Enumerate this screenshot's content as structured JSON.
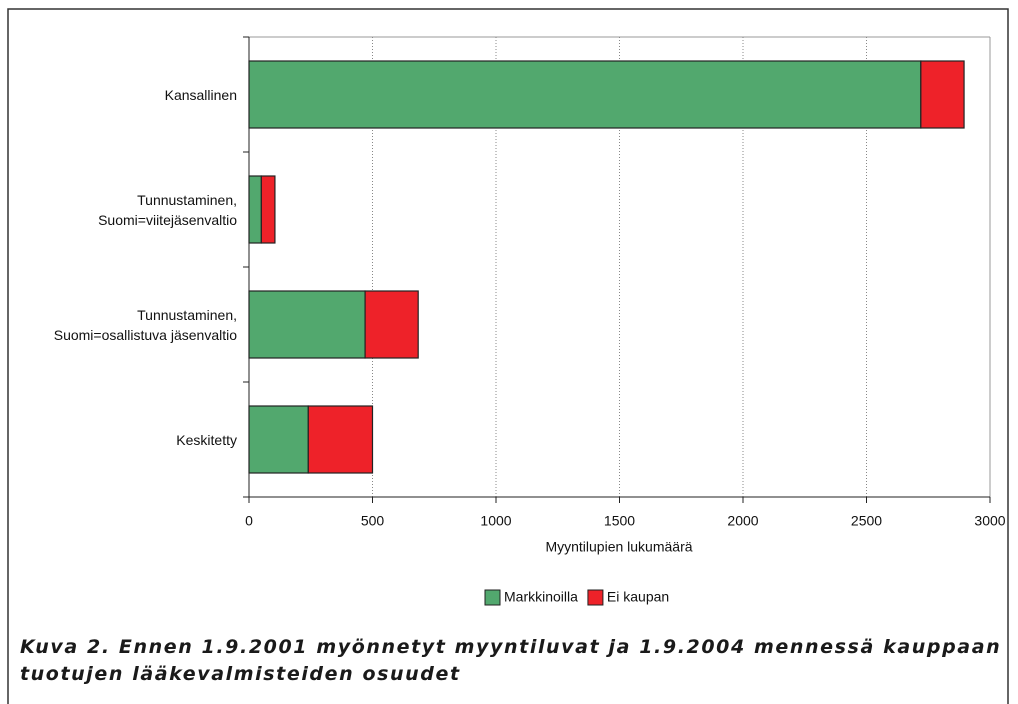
{
  "chart_data": {
    "type": "bar",
    "orientation": "horizontal",
    "stacked": true,
    "categories": [
      "Kansallinen",
      "Tunnustaminen,\nSuomi=viitejäsenvaltio",
      "Tunnustaminen,\nSuomi=osallistuva jäsenvaltio",
      "Keskitetty"
    ],
    "series": [
      {
        "name": "Markkinoilla",
        "color": "#52a86e",
        "values": [
          2720,
          50,
          470,
          240
        ]
      },
      {
        "name": "Ei kaupan",
        "color": "#ee2229",
        "values": [
          175,
          55,
          215,
          260
        ]
      }
    ],
    "xlim": [
      0,
      3000
    ],
    "xticks": [
      0,
      500,
      1000,
      1500,
      2000,
      2500,
      3000
    ],
    "xlabel": "Myyntilupien lukumäärä",
    "grid": true,
    "legend": "bottom",
    "caption": [
      "Kuva 2.  Ennen 1.9.2001 myönnetyt myyntiluvat ja 1.9.2004 mennessä kauppaan",
      "tuotujen lääkevalmisteiden osuudet"
    ]
  }
}
